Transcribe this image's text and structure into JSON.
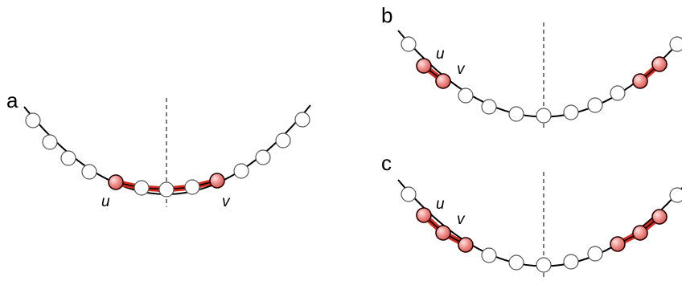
{
  "panels": [
    {
      "letter": "a",
      "left_label": "u",
      "right_label": "v"
    },
    {
      "letter": "b",
      "left_label": "u",
      "right_label": "v"
    },
    {
      "letter": "c",
      "left_label": "u",
      "right_label": "v"
    }
  ],
  "colors": {
    "highlight_node": "#e88585",
    "highlight_edge": "#d42a1e",
    "plain_node": "#ffffff",
    "edge": "#000000",
    "axis": "#333333"
  }
}
